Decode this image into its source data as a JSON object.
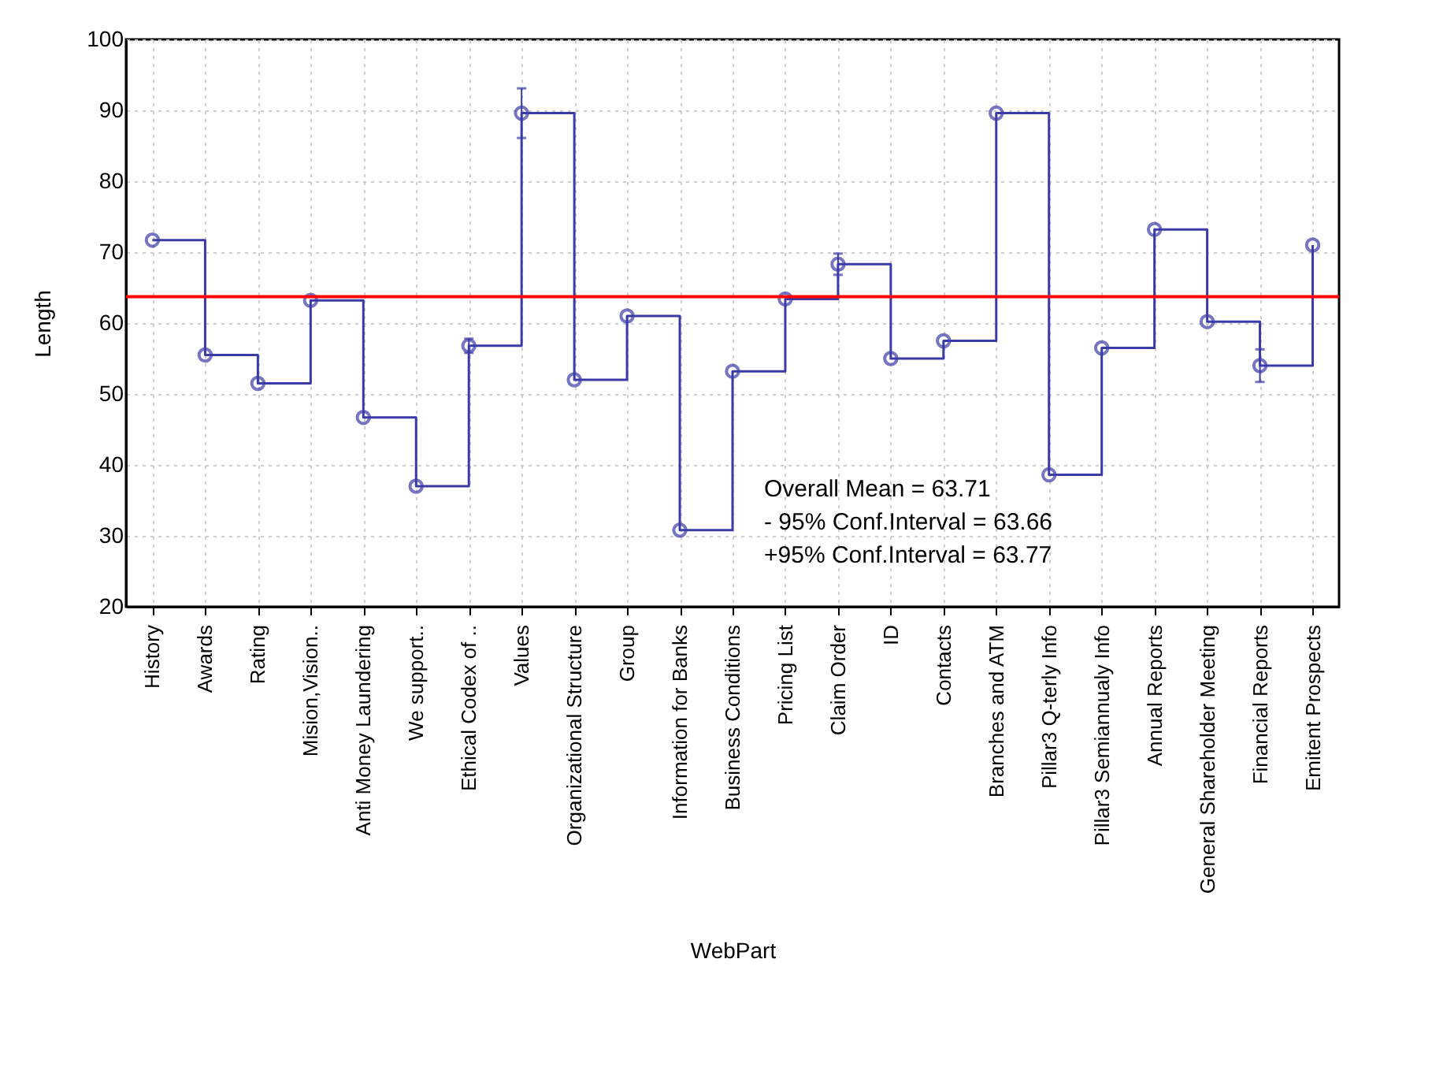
{
  "chart_data": {
    "type": "step",
    "xlabel": "WebPart",
    "ylabel": "Length",
    "categories": [
      "History",
      "Awards",
      "Rating",
      "Mision,Vision..",
      "Anti Money Laundering",
      "We support..",
      "Ethical Codex of ..",
      "Values",
      "Organizational Structure",
      "Group",
      "Information for Banks",
      "Business Conditions",
      "Pricing List",
      "Claim Order",
      "ID",
      "Contacts",
      "Branches and ATM",
      "Pillar3 Q-terly Info",
      "Pillar3 Semiannualy Info",
      "Annual Reports",
      "General Shareholder Meeting",
      "Financial Reports",
      "Emitent Prospects"
    ],
    "series": [
      {
        "color": "#3b3ba8",
        "values": [
          71.7,
          55.5,
          51.5,
          63.2,
          46.7,
          37,
          56.8,
          89.6,
          52,
          61,
          30.8,
          53.2,
          63.4,
          68.3,
          55,
          57.5,
          89.6,
          38.6,
          56.5,
          73.2,
          60.2,
          54,
          71
        ],
        "errors": [
          null,
          null,
          null,
          null,
          null,
          null,
          1,
          3.5,
          null,
          null,
          null,
          null,
          null,
          1.5,
          null,
          null,
          null,
          null,
          null,
          null,
          null,
          2.3,
          null
        ]
      }
    ],
    "ylim": [
      20,
      100
    ],
    "yticks": [
      20,
      30,
      40,
      50,
      60,
      70,
      80,
      90,
      100
    ],
    "grid": true,
    "marker": "circle",
    "ref_lines": [
      {
        "axis": "y",
        "value": 63.71,
        "color": "#ff0000"
      }
    ],
    "annotations": [
      "Overall Mean = 63.71",
      "- 95% Conf.Interval = 63.66",
      "+95% Conf.Interval = 63.77"
    ]
  }
}
